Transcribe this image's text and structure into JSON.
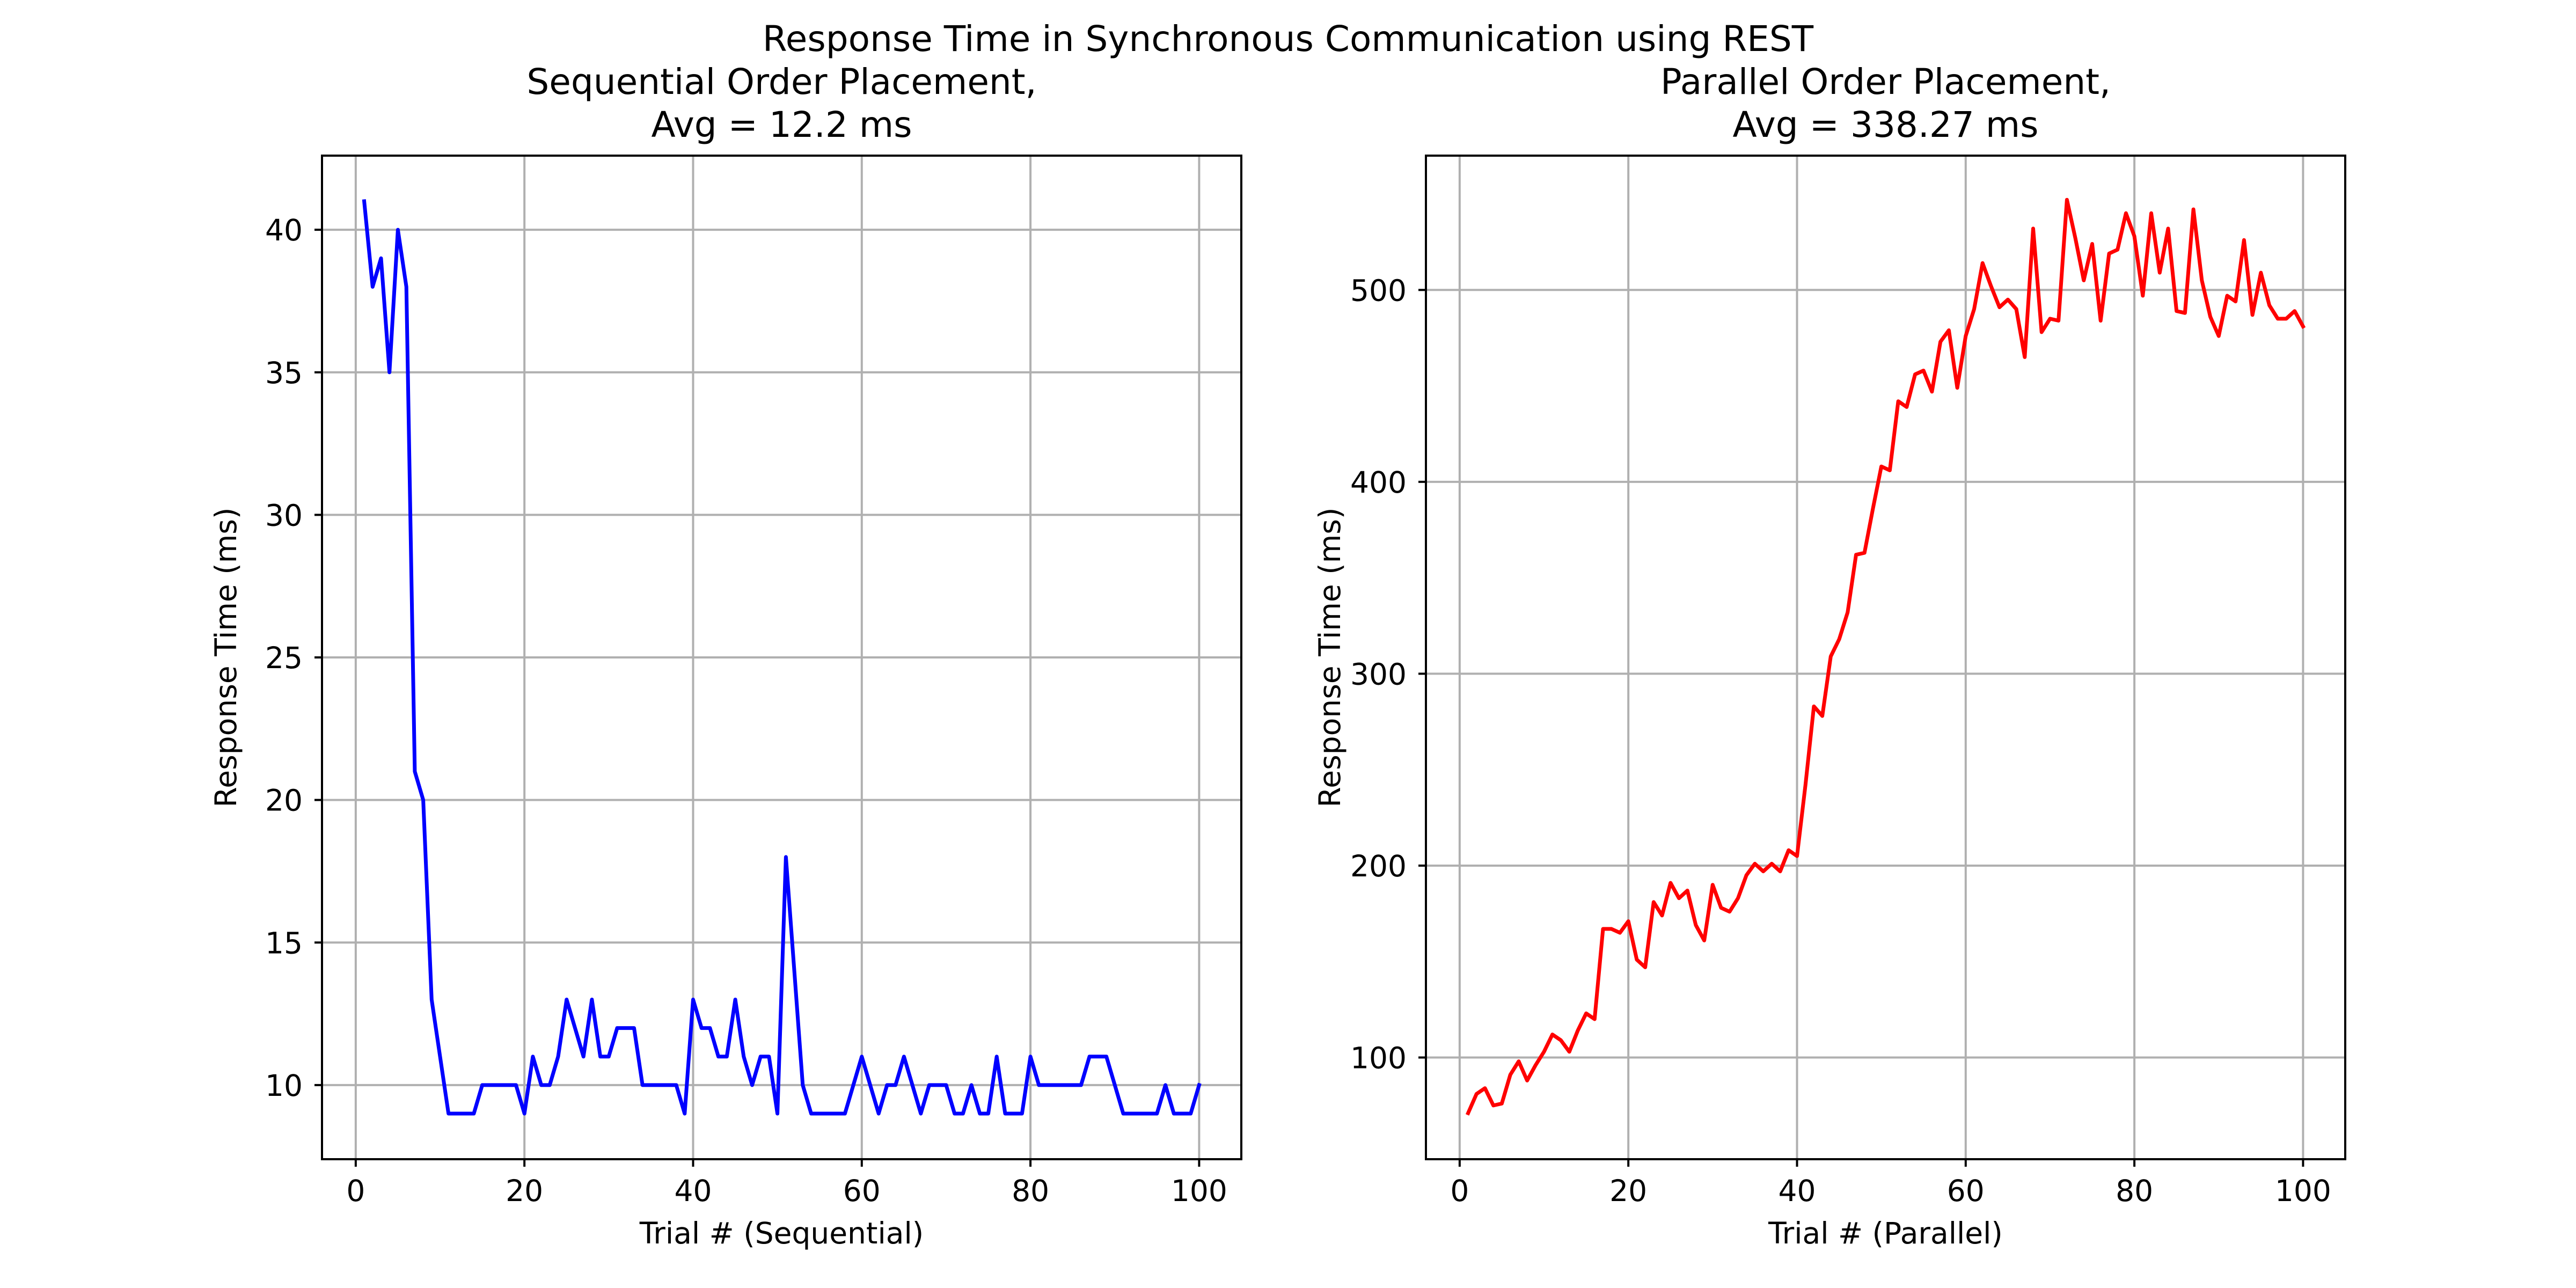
{
  "figure": {
    "suptitle": "Response Time in Synchronous Communication using REST"
  },
  "chart_data": [
    {
      "type": "line",
      "title": "Sequential Order Placement,\nAvg = 12.2 ms",
      "title_lines": [
        "Sequential Order Placement,",
        "Avg = 12.2 ms"
      ],
      "xlabel": "Trial # (Sequential)",
      "ylabel": "Response Time (ms)",
      "xlim": [
        -4,
        105
      ],
      "ylim": [
        7.4,
        42.6
      ],
      "xticks": [
        0,
        20,
        40,
        60,
        80,
        100
      ],
      "yticks": [
        10,
        15,
        20,
        25,
        30,
        35,
        40
      ],
      "grid": true,
      "series": [
        {
          "color": "#0000ff",
          "x": [
            1,
            2,
            3,
            4,
            5,
            6,
            7,
            8,
            9,
            10,
            11,
            12,
            13,
            14,
            15,
            16,
            17,
            18,
            19,
            20,
            21,
            22,
            23,
            24,
            25,
            26,
            27,
            28,
            29,
            30,
            31,
            32,
            33,
            34,
            35,
            36,
            37,
            38,
            39,
            40,
            41,
            42,
            43,
            44,
            45,
            46,
            47,
            48,
            49,
            50,
            51,
            52,
            53,
            54,
            55,
            56,
            57,
            58,
            59,
            60,
            61,
            62,
            63,
            64,
            65,
            66,
            67,
            68,
            69,
            70,
            71,
            72,
            73,
            74,
            75,
            76,
            77,
            78,
            79,
            80,
            81,
            82,
            83,
            84,
            85,
            86,
            87,
            88,
            89,
            90,
            91,
            92,
            93,
            94,
            95,
            96,
            97,
            98,
            99,
            100
          ],
          "values": [
            41,
            38,
            39,
            35,
            40,
            38,
            21,
            20,
            13,
            11,
            9,
            9,
            9,
            9,
            10,
            10,
            10,
            10,
            10,
            9,
            11,
            10,
            10,
            11,
            13,
            12,
            11,
            13,
            11,
            11,
            12,
            12,
            12,
            10,
            10,
            10,
            10,
            10,
            9,
            13,
            12,
            12,
            11,
            11,
            13,
            11,
            10,
            11,
            11,
            9,
            18,
            14,
            10,
            9,
            9,
            9,
            9,
            9,
            10,
            11,
            10,
            9,
            10,
            10,
            11,
            10,
            9,
            10,
            10,
            10,
            9,
            9,
            10,
            9,
            9,
            11,
            9,
            9,
            9,
            11,
            10,
            10,
            10,
            10,
            10,
            10,
            11,
            11,
            11,
            10,
            9,
            9,
            9,
            9,
            9,
            10,
            9,
            9,
            9,
            10
          ]
        }
      ]
    },
    {
      "type": "line",
      "title": "Parallel Order Placement,\nAvg = 338.27 ms",
      "title_lines": [
        "Parallel Order Placement,",
        "Avg = 338.27 ms"
      ],
      "xlabel": "Trial # (Parallel)",
      "ylabel": "Response Time (ms)",
      "xlim": [
        -4,
        105
      ],
      "ylim": [
        47,
        570
      ],
      "xticks": [
        0,
        20,
        40,
        60,
        80,
        100
      ],
      "yticks": [
        100,
        200,
        300,
        400,
        500
      ],
      "grid": true,
      "series": [
        {
          "color": "#ff0000",
          "x": [
            1,
            2,
            3,
            4,
            5,
            6,
            7,
            8,
            9,
            10,
            11,
            12,
            13,
            14,
            15,
            16,
            17,
            18,
            19,
            20,
            21,
            22,
            23,
            24,
            25,
            26,
            27,
            28,
            29,
            30,
            31,
            32,
            33,
            34,
            35,
            36,
            37,
            38,
            39,
            40,
            41,
            42,
            43,
            44,
            45,
            46,
            47,
            48,
            49,
            50,
            51,
            52,
            53,
            54,
            55,
            56,
            57,
            58,
            59,
            60,
            61,
            62,
            63,
            64,
            65,
            66,
            67,
            68,
            69,
            70,
            71,
            72,
            73,
            74,
            75,
            76,
            77,
            78,
            79,
            80,
            81,
            82,
            83,
            84,
            85,
            86,
            87,
            88,
            89,
            90,
            91,
            92,
            93,
            94,
            95,
            96,
            97,
            98,
            99,
            100
          ],
          "values": [
            71,
            81,
            84,
            75,
            76,
            91,
            98,
            88,
            96,
            103,
            112,
            109,
            103,
            114,
            123,
            120,
            167,
            167,
            165,
            171,
            151,
            147,
            181,
            174,
            191,
            183,
            187,
            169,
            161,
            190,
            178,
            176,
            183,
            195,
            201,
            197,
            201,
            197,
            208,
            205,
            242,
            283,
            278,
            309,
            318,
            332,
            362,
            363,
            386,
            408,
            406,
            442,
            439,
            456,
            458,
            447,
            473,
            479,
            449,
            476,
            490,
            514,
            502,
            491,
            495,
            490,
            465,
            532,
            478,
            485,
            484,
            547,
            527,
            505,
            524,
            484,
            519,
            521,
            540,
            528,
            497,
            540,
            509,
            532,
            489,
            488,
            542,
            505,
            486,
            476,
            497,
            494,
            526,
            487,
            509,
            492,
            485,
            485,
            489,
            481
          ]
        }
      ]
    }
  ]
}
